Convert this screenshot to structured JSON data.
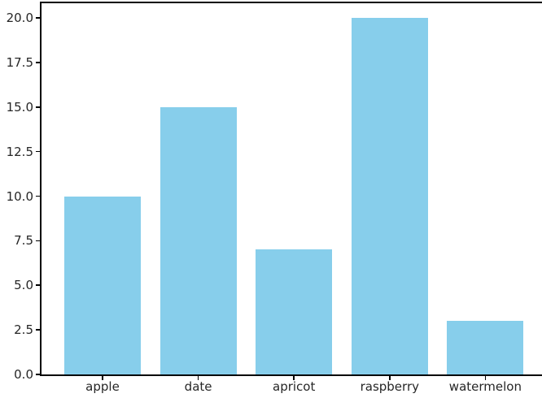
{
  "chart_data": {
    "type": "bar",
    "categories": [
      "apple",
      "date",
      "apricot",
      "raspberry",
      "watermelon"
    ],
    "values": [
      10,
      15,
      7,
      20,
      3
    ],
    "ytick_labels": [
      "0.0",
      "2.5",
      "5.0",
      "7.5",
      "10.0",
      "12.5",
      "15.0",
      "17.5",
      "20.0"
    ],
    "yticks": [
      0,
      2.5,
      5,
      7.5,
      10,
      12.5,
      15,
      17.5,
      20
    ],
    "ylim": [
      0,
      20.9
    ],
    "title": "",
    "xlabel": "",
    "ylabel": "",
    "grid": false,
    "legend": false,
    "bar_color": "#87CEEB",
    "spine_color": "#000000",
    "text_color": "#262626",
    "background_color": "#ffffff"
  }
}
